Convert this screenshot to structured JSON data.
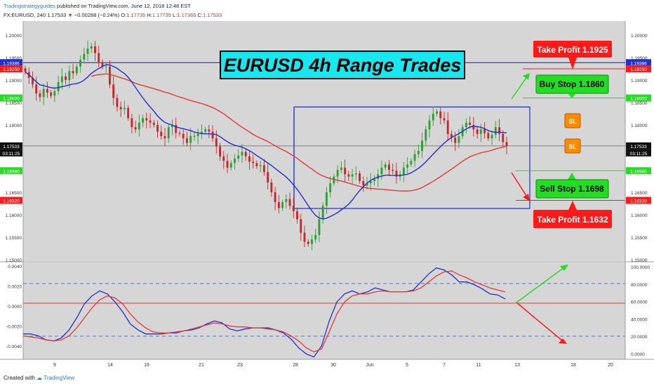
{
  "header": {
    "publisher": "Tradingstrategyguides",
    "published_text": "published on TradingView.com, June 12, 2018 12:48 EST",
    "symbol": "FX:EURUSD, 240",
    "last": "1.17533",
    "change_arrow": "▼",
    "change": "−0.00288 (−0.24%)",
    "o_label": "O:",
    "o_value": "1.17735",
    "h_label": "H:",
    "h_value": "1.17735",
    "l_label": "L:",
    "l_value": "1.17365",
    "c_label": "C:",
    "c_value": "1.17533"
  },
  "footer": {
    "created_with": "Created with",
    "brand": "TradingView"
  },
  "colors": {
    "up": "#2e9e35",
    "down": "#c62828",
    "ma_blue": "#1f2fcf",
    "ma_red": "#e53935",
    "panel_bg": "#d6d6d6",
    "green": "#22dd22",
    "red": "#ff1a1a",
    "title_bg": "#19e7ef"
  },
  "chart_data": [
    {
      "type": "candlestick",
      "title": "EURUSD 4h Range Trades",
      "ylim": [
        1.15,
        1.203
      ],
      "y_ticks": [
        "1.20000",
        "1.19500",
        "1.19000",
        "1.18500",
        "1.18000",
        "1.17500",
        "1.17000",
        "1.16500",
        "1.16000",
        "1.15500",
        "1.15000"
      ],
      "y_tick_values": [
        1.2,
        1.195,
        1.19,
        1.185,
        1.18,
        1.175,
        1.17,
        1.165,
        1.16,
        1.155,
        1.15
      ],
      "x_ticks": [
        "9",
        "14",
        "16",
        "21",
        "23",
        "28",
        "30",
        "Jun",
        "5",
        "7",
        "11",
        "13",
        "18",
        "20"
      ],
      "price_tags": [
        {
          "text": "1.19386",
          "value": 1.19386,
          "color": "#1f2fcf"
        },
        {
          "text": "1.19250",
          "value": 1.1925,
          "color": "#ff1a1a"
        },
        {
          "text": "1.18600",
          "value": 1.186,
          "color": "#22dd22"
        },
        {
          "text": "1.17533",
          "value": 1.17533,
          "color": "#111111"
        },
        {
          "text": "03:11:25",
          "value": 1.17378,
          "color": "#111111"
        },
        {
          "text": "1.16980",
          "value": 1.1698,
          "color": "#22dd22"
        },
        {
          "text": "1.16320",
          "value": 1.1632,
          "color": "#ff1a1a"
        }
      ],
      "levels": {
        "resistance": 1.19386,
        "take_profit_long": 1.1925,
        "buy_stop": 1.186,
        "current": 1.17533,
        "sell_stop": 1.1698,
        "take_profit_short": 1.1632
      },
      "range_box": {
        "top": 1.184,
        "bottom": 1.1614
      },
      "closes": [
        1.1918,
        1.1905,
        1.189,
        1.187,
        1.1862,
        1.188,
        1.1872,
        1.1865,
        1.1875,
        1.1895,
        1.1908,
        1.19,
        1.192,
        1.1915,
        1.193,
        1.1945,
        1.1958,
        1.197,
        1.1975,
        1.196,
        1.194,
        1.193,
        1.193,
        1.189,
        1.186,
        1.184,
        1.1835,
        1.1838,
        1.1815,
        1.1795,
        1.179,
        1.1805,
        1.1815,
        1.181,
        1.1805,
        1.18,
        1.1785,
        1.1775,
        1.177,
        1.1795,
        1.18,
        1.1782,
        1.178,
        1.177,
        1.176,
        1.1775,
        1.1775,
        1.178,
        1.1785,
        1.179,
        1.1785,
        1.177,
        1.1752,
        1.173,
        1.172,
        1.1705,
        1.1715,
        1.1725,
        1.1732,
        1.174,
        1.173,
        1.1718,
        1.1715,
        1.1708,
        1.171,
        1.1695,
        1.1672,
        1.165,
        1.1628,
        1.1615,
        1.1628,
        1.1635,
        1.162,
        1.1608,
        1.159,
        1.156,
        1.154,
        1.1535,
        1.1545,
        1.1555,
        1.159,
        1.162,
        1.165,
        1.167,
        1.1685,
        1.17,
        1.1705,
        1.169,
        1.1685,
        1.169,
        1.1692,
        1.1675,
        1.1665,
        1.167,
        1.1675,
        1.168,
        1.169,
        1.1705,
        1.1712,
        1.17,
        1.1698,
        1.1685,
        1.169,
        1.1705,
        1.1712,
        1.172,
        1.1735,
        1.1742,
        1.1765,
        1.179,
        1.181,
        1.1825,
        1.183,
        1.1815,
        1.181,
        1.178,
        1.1772,
        1.176,
        1.1775,
        1.1795,
        1.1805,
        1.18,
        1.179,
        1.178,
        1.179,
        1.1782,
        1.177,
        1.1778,
        1.1795,
        1.178,
        1.1762,
        1.1753
      ]
    },
    {
      "type": "line",
      "title": "",
      "ylim": [
        -0.0052,
        0.0042
      ],
      "y_ticks_left": [
        "0.0040",
        "0.0020",
        "0.0000",
        "-0.0020",
        "-0.0040"
      ],
      "y_tick_values_left": [
        0.004,
        0.002,
        0.0,
        -0.002,
        -0.004
      ],
      "y_ticks_right": [
        "100.0000",
        "80.0000",
        "60.0000",
        "40.0000",
        "20.0000",
        "0.0000"
      ],
      "y_tick_values_right": [
        100,
        80,
        60,
        40,
        20,
        0
      ],
      "series": [
        {
          "color": "#1f2fcf",
          "values": [
            -0.0028,
            -0.0028,
            -0.003,
            -0.0034,
            -0.0035,
            -0.0032,
            -0.0024,
            -0.0012,
            0.0002,
            0.001,
            0.0015,
            0.0012,
            0.0004,
            -0.0006,
            -0.0018,
            -0.0024,
            -0.0028,
            -0.0028,
            -0.0028,
            -0.0027,
            -0.0027,
            -0.0025,
            -0.0024,
            -0.0022,
            -0.0018,
            -0.0015,
            -0.0017,
            -0.0023,
            -0.0025,
            -0.0023,
            -0.0022,
            -0.0022,
            -0.0022,
            -0.0024,
            -0.0027,
            -0.0033,
            -0.0042,
            -0.0048,
            -0.0051,
            -0.004,
            -0.0015,
            0.0004,
            0.0012,
            0.0015,
            0.0012,
            0.0014,
            0.0018,
            0.0016,
            0.0014,
            0.0014,
            0.0014,
            0.0016,
            0.0024,
            0.0032,
            0.0038,
            0.0036,
            0.0031,
            0.0024,
            0.0024,
            0.0021,
            0.0017,
            0.0012,
            0.0011,
            0.0007
          ]
        },
        {
          "color": "#e53935",
          "values": [
            -0.003,
            -0.0031,
            -0.0032,
            -0.0034,
            -0.0035,
            -0.0034,
            -0.003,
            -0.0022,
            -0.0012,
            -0.0002,
            0.0006,
            0.001,
            0.0008,
            0.0002,
            -0.0008,
            -0.0016,
            -0.0022,
            -0.0026,
            -0.0027,
            -0.0027,
            -0.0026,
            -0.0025,
            -0.0023,
            -0.0021,
            -0.0019,
            -0.0017,
            -0.0018,
            -0.002,
            -0.0021,
            -0.0021,
            -0.0022,
            -0.0022,
            -0.0023,
            -0.0024,
            -0.0026,
            -0.003,
            -0.0035,
            -0.0042,
            -0.0046,
            -0.0043,
            -0.0026,
            -0.0008,
            0.0004,
            0.001,
            0.0012,
            0.0012,
            0.0014,
            0.0015,
            0.0014,
            0.0014,
            0.0014,
            0.0015,
            0.0018,
            0.0024,
            0.003,
            0.0034,
            0.0035,
            0.0031,
            0.0028,
            0.0024,
            0.0021,
            0.0018,
            0.0016,
            0.0014
          ]
        }
      ]
    }
  ],
  "annotations": {
    "title_box": "EURUSD 4h Range Trades",
    "take_profit_top": "Take Profit 1.1925",
    "buy_stop": "Buy Stop 1.1860",
    "sell_stop": "Sell Stop 1.1698",
    "take_profit_bottom": "Take Profit 1.1632",
    "sl1": "SL",
    "sl2": "SL"
  }
}
